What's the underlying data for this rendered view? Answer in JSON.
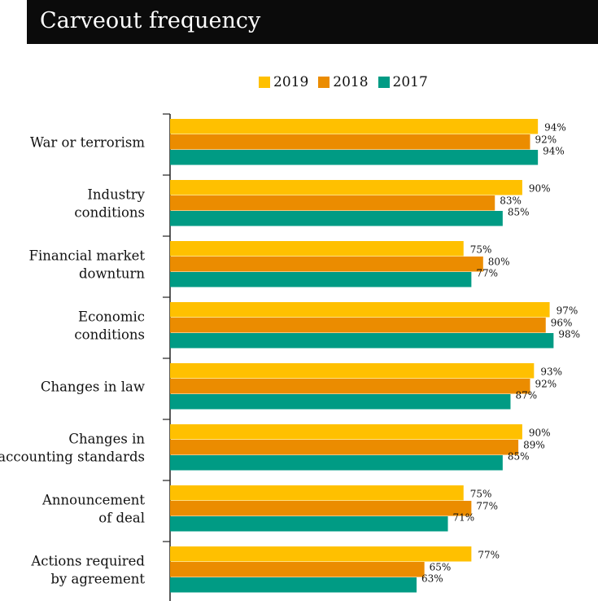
{
  "header": {
    "title": "Carveout frequency"
  },
  "colors": {
    "2019": "#FFC000",
    "2018": "#EB8C00",
    "2017": "#009B84",
    "header_bg": "#0b0b0b"
  },
  "legend": [
    {
      "label": "2019",
      "color": "#FFC000"
    },
    {
      "label": "2018",
      "color": "#EB8C00"
    },
    {
      "label": "2017",
      "color": "#009B84"
    }
  ],
  "chart_data": {
    "type": "bar",
    "orientation": "horizontal",
    "title": "Carveout frequency",
    "xlim": [
      0,
      100
    ],
    "grid": false,
    "legend_position": "top",
    "categories": [
      [
        "War or terrorism"
      ],
      [
        "Industry",
        "conditions"
      ],
      [
        "Financial market",
        "downturn"
      ],
      [
        "Economic",
        "conditions"
      ],
      [
        "Changes in law"
      ],
      [
        "Changes in",
        "accounting standards"
      ],
      [
        "Announcement",
        "of deal"
      ],
      [
        "Actions required",
        "by agreement"
      ]
    ],
    "series": [
      {
        "name": "2019",
        "color": "#FFC000",
        "values": [
          94,
          90,
          75,
          97,
          93,
          90,
          75,
          77
        ],
        "labels": [
          "94%",
          "90%",
          "75%",
          "97%",
          "93%",
          "90%",
          "75%",
          "77%"
        ]
      },
      {
        "name": "2018",
        "color": "#EB8C00",
        "values": [
          92,
          83,
          80,
          96,
          92,
          89,
          77,
          65
        ],
        "labels": [
          "92%",
          "83%",
          "80%",
          "96%",
          "92%",
          "89%",
          "77%",
          "65%"
        ]
      },
      {
        "name": "2017",
        "color": "#009B84",
        "values": [
          94,
          85,
          77,
          98,
          87,
          85,
          71,
          63
        ],
        "labels": [
          "94%",
          "85%",
          "77%",
          "98%",
          "87%",
          "85%",
          "71%",
          "63%"
        ]
      }
    ]
  }
}
